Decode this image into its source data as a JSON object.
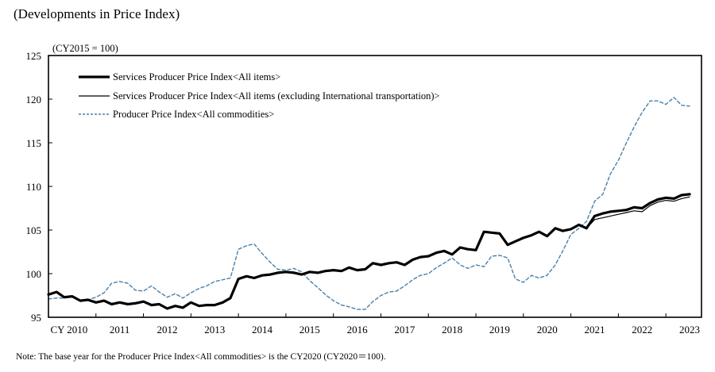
{
  "title": "(Developments in Price Index)",
  "note": "Note: The base year for the Producer Price Index<All commodities> is the CY2020 (CY2020＝100).",
  "chart_data": {
    "type": "line",
    "title": "(Developments in Price Index)",
    "unit_label": "(CY2015 = 100)",
    "xlabel": "",
    "ylabel": "",
    "ylim": [
      95,
      125
    ],
    "xlim": [
      2010.0,
      2023.75
    ],
    "yticks": [
      95,
      100,
      105,
      110,
      115,
      120,
      125
    ],
    "xtick_labels": [
      "CY 2010",
      "2011",
      "2012",
      "2013",
      "2014",
      "2015",
      "2016",
      "2017",
      "2018",
      "2019",
      "2020",
      "2021",
      "2022",
      "2023"
    ],
    "grid": false,
    "legend_position": "top-left",
    "colors": {
      "spp_all": "#000000",
      "spp_ex_intl": "#000000",
      "ppi": "#4a7fa8"
    },
    "x": [
      2010.0,
      2010.17,
      2010.33,
      2010.5,
      2010.67,
      2010.83,
      2011.0,
      2011.17,
      2011.33,
      2011.5,
      2011.67,
      2011.83,
      2012.0,
      2012.17,
      2012.33,
      2012.5,
      2012.67,
      2012.83,
      2013.0,
      2013.17,
      2013.33,
      2013.5,
      2013.67,
      2013.83,
      2014.0,
      2014.17,
      2014.33,
      2014.5,
      2014.67,
      2014.83,
      2015.0,
      2015.17,
      2015.33,
      2015.5,
      2015.67,
      2015.83,
      2016.0,
      2016.17,
      2016.33,
      2016.5,
      2016.67,
      2016.83,
      2017.0,
      2017.17,
      2017.33,
      2017.5,
      2017.67,
      2017.83,
      2018.0,
      2018.17,
      2018.33,
      2018.5,
      2018.67,
      2018.83,
      2019.0,
      2019.17,
      2019.33,
      2019.5,
      2019.67,
      2019.83,
      2020.0,
      2020.17,
      2020.33,
      2020.5,
      2020.67,
      2020.83,
      2021.0,
      2021.17,
      2021.33,
      2021.5,
      2021.67,
      2021.83,
      2022.0,
      2022.17,
      2022.33,
      2022.5,
      2022.67,
      2022.83,
      2023.0,
      2023.17,
      2023.33,
      2023.5
    ],
    "series": [
      {
        "name": "Services Producer Price Index<All items>",
        "style": "thick-solid",
        "values": [
          97.6,
          97.9,
          97.3,
          97.4,
          96.9,
          97.0,
          96.7,
          96.9,
          96.5,
          96.7,
          96.5,
          96.6,
          96.8,
          96.4,
          96.5,
          96.0,
          96.3,
          96.1,
          96.7,
          96.3,
          96.4,
          96.4,
          96.7,
          97.2,
          99.4,
          99.7,
          99.5,
          99.8,
          99.9,
          100.1,
          100.2,
          100.1,
          99.9,
          100.2,
          100.1,
          100.3,
          100.4,
          100.3,
          100.7,
          100.4,
          100.5,
          101.2,
          101.0,
          101.2,
          101.3,
          101.0,
          101.6,
          101.9,
          102.0,
          102.4,
          102.6,
          102.2,
          103.0,
          102.8,
          102.7,
          104.8,
          104.7,
          104.6,
          103.3,
          103.7,
          104.1,
          104.4,
          104.8,
          104.3,
          105.2,
          104.9,
          105.1,
          105.6,
          105.2,
          106.6,
          106.9,
          107.1,
          107.2,
          107.3,
          107.6,
          107.5,
          108.1,
          108.5,
          108.7,
          108.6,
          109.0,
          109.1
        ]
      },
      {
        "name": "Services Producer Price Index<All items (excluding International transportation)>",
        "style": "thin-solid",
        "values": [
          97.6,
          97.9,
          97.3,
          97.4,
          96.9,
          97.0,
          96.7,
          96.9,
          96.5,
          96.7,
          96.5,
          96.6,
          96.8,
          96.4,
          96.5,
          96.0,
          96.3,
          96.1,
          96.7,
          96.3,
          96.4,
          96.4,
          96.7,
          97.2,
          99.4,
          99.7,
          99.5,
          99.8,
          99.9,
          100.1,
          100.2,
          100.1,
          99.9,
          100.2,
          100.1,
          100.3,
          100.4,
          100.3,
          100.7,
          100.4,
          100.5,
          101.2,
          101.0,
          101.2,
          101.3,
          101.0,
          101.6,
          101.9,
          102.0,
          102.4,
          102.6,
          102.2,
          103.0,
          102.8,
          102.7,
          104.8,
          104.7,
          104.6,
          103.3,
          103.7,
          104.1,
          104.4,
          104.8,
          104.3,
          105.2,
          104.9,
          105.1,
          105.6,
          105.2,
          106.2,
          106.4,
          106.6,
          106.8,
          107.0,
          107.2,
          107.1,
          107.8,
          108.2,
          108.4,
          108.3,
          108.6,
          108.8
        ]
      },
      {
        "name": "Producer Price Index<All commodities>",
        "style": "dashed",
        "values": [
          97.1,
          97.2,
          97.2,
          97.3,
          97.0,
          97.0,
          97.3,
          97.8,
          98.9,
          99.1,
          98.9,
          98.1,
          98.0,
          98.6,
          97.9,
          97.3,
          97.7,
          97.2,
          97.8,
          98.3,
          98.6,
          99.1,
          99.3,
          99.5,
          102.8,
          103.2,
          103.4,
          102.3,
          101.3,
          100.5,
          100.4,
          100.6,
          100.2,
          99.2,
          98.4,
          97.6,
          96.9,
          96.4,
          96.2,
          95.9,
          95.9,
          96.8,
          97.5,
          97.9,
          98.0,
          98.6,
          99.3,
          99.8,
          100.0,
          100.7,
          101.2,
          101.8,
          101.0,
          100.6,
          101.0,
          100.8,
          102.0,
          102.1,
          101.8,
          99.4,
          99.0,
          99.8,
          99.5,
          99.8,
          101.0,
          102.6,
          104.5,
          105.2,
          106.0,
          108.3,
          109.1,
          111.4,
          113.0,
          115.0,
          116.8,
          118.5,
          119.8,
          119.8,
          119.4,
          120.2,
          119.3,
          119.2
        ]
      }
    ]
  }
}
